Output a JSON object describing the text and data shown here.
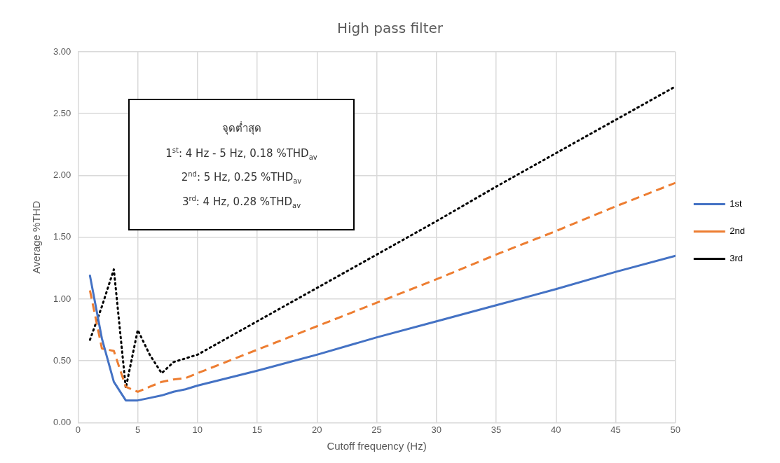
{
  "chart_data": {
    "type": "line",
    "title": "High pass filter",
    "xlabel": "Cutoff frequency (Hz)",
    "ylabel": "Average %THD",
    "x": [
      1,
      2,
      3,
      4,
      5,
      6,
      7,
      8,
      9,
      10,
      15,
      20,
      25,
      30,
      35,
      40,
      45,
      50
    ],
    "series": [
      {
        "name": "1st",
        "color": "#4472c4",
        "line_style": "solid",
        "values": [
          1.19,
          0.68,
          0.33,
          0.18,
          0.18,
          0.2,
          0.22,
          0.25,
          0.27,
          0.3,
          0.42,
          0.55,
          0.69,
          0.82,
          0.95,
          1.08,
          1.22,
          1.35
        ]
      },
      {
        "name": "2nd",
        "color": "#ed7d31",
        "line_style": "dashed",
        "values": [
          1.07,
          0.6,
          0.58,
          0.29,
          0.25,
          0.29,
          0.33,
          0.35,
          0.36,
          0.4,
          0.59,
          0.78,
          0.97,
          1.16,
          1.36,
          1.55,
          1.75,
          1.94
        ]
      },
      {
        "name": "3rd",
        "color": "#000000",
        "line_style": "dotted",
        "values": [
          0.67,
          0.94,
          1.24,
          0.28,
          0.75,
          0.55,
          0.4,
          0.49,
          0.52,
          0.55,
          0.82,
          1.09,
          1.36,
          1.63,
          1.91,
          2.18,
          2.45,
          2.72
        ]
      }
    ],
    "xlim": [
      0,
      50
    ],
    "xticks": [
      0,
      5,
      10,
      15,
      20,
      25,
      30,
      35,
      40,
      45,
      50
    ],
    "ylim": [
      0,
      3
    ],
    "yticks": [
      {
        "value": 0,
        "label": "0.00"
      },
      {
        "value": 0.5,
        "label": "0.50"
      },
      {
        "value": 1,
        "label": "1.00"
      },
      {
        "value": 1.5,
        "label": "1.50"
      },
      {
        "value": 2,
        "label": "2.00"
      },
      {
        "value": 2.5,
        "label": "2.50"
      },
      {
        "value": 3,
        "label": "3.00"
      }
    ],
    "grid": true,
    "legend": "right",
    "marker": "none",
    "annotations": [
      "จุดต่ำสุด",
      "1$^{st}$: 4 Hz - 5 Hz, 0.18 %THD$_{av}$",
      "2$^{nd}$: 5 Hz, 0.25 %THD$_{av}$",
      "3$^{rd}$: 4 Hz, 0.28 %THD$_{av}$"
    ]
  }
}
